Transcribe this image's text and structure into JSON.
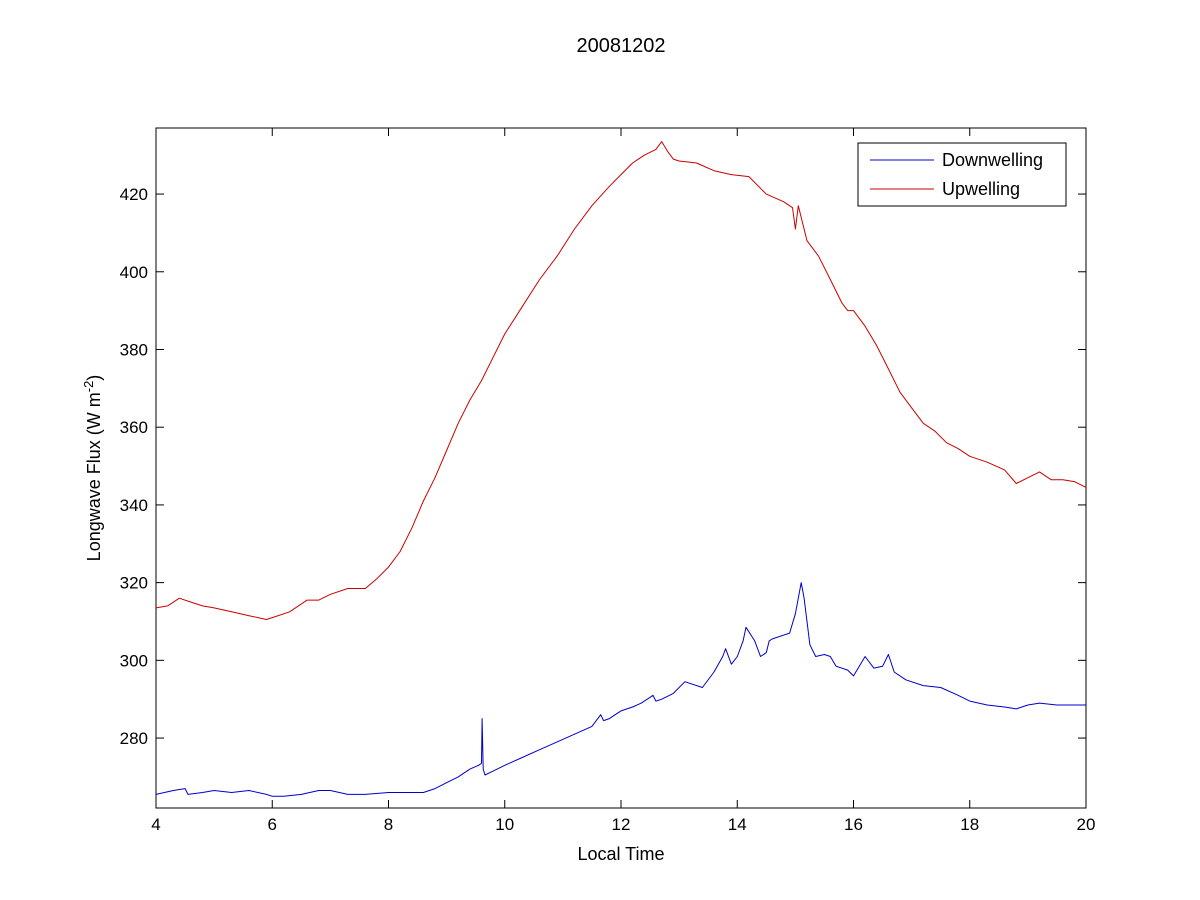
{
  "chart_data": {
    "type": "line",
    "title": "20081202",
    "xlabel": "Local Time",
    "ylabel": {
      "main": "Longwave Flux (W m",
      "superscript": "-2",
      "close": ")"
    },
    "xlim": [
      4,
      20
    ],
    "ylim": [
      262,
      437
    ],
    "xticks": [
      4,
      6,
      8,
      10,
      12,
      14,
      16,
      18,
      20
    ],
    "yticks": [
      280,
      300,
      320,
      340,
      360,
      380,
      400,
      420
    ],
    "grid": false,
    "legend_position": "top-right",
    "series": [
      {
        "name": "Downwelling",
        "color": "#0000cc",
        "x": [
          4.0,
          4.3,
          4.5,
          4.55,
          4.8,
          5.0,
          5.3,
          5.6,
          5.9,
          6.0,
          6.2,
          6.5,
          6.8,
          7.0,
          7.3,
          7.6,
          8.0,
          8.3,
          8.6,
          8.8,
          9.0,
          9.2,
          9.4,
          9.55,
          9.6,
          9.61,
          9.63,
          9.66,
          9.8,
          10.0,
          10.3,
          10.6,
          10.9,
          11.2,
          11.5,
          11.65,
          11.7,
          11.8,
          11.9,
          12.0,
          12.2,
          12.35,
          12.5,
          12.55,
          12.6,
          12.7,
          12.9,
          13.1,
          13.4,
          13.6,
          13.75,
          13.8,
          13.9,
          14.0,
          14.1,
          14.15,
          14.3,
          14.4,
          14.5,
          14.55,
          14.6,
          14.9,
          15.0,
          15.05,
          15.1,
          15.15,
          15.25,
          15.35,
          15.5,
          15.6,
          15.7,
          15.9,
          16.0,
          16.1,
          16.2,
          16.35,
          16.5,
          16.6,
          16.7,
          16.9,
          17.2,
          17.5,
          17.8,
          18.0,
          18.3,
          18.6,
          18.8,
          19.0,
          19.2,
          19.5,
          19.8,
          20.0
        ],
        "y": [
          265.5,
          266.5,
          267.0,
          265.5,
          266.0,
          266.5,
          266.0,
          266.5,
          265.5,
          265.0,
          265.0,
          265.5,
          266.5,
          266.5,
          265.5,
          265.5,
          266.0,
          266.0,
          266.0,
          267.0,
          268.5,
          270.0,
          272.0,
          273.0,
          273.5,
          285.0,
          272.0,
          270.5,
          271.5,
          273.0,
          275.0,
          277.0,
          279.0,
          281.0,
          283.0,
          286.0,
          284.5,
          285.0,
          286.0,
          287.0,
          288.0,
          289.0,
          290.5,
          291.0,
          289.5,
          290.0,
          291.5,
          294.5,
          293.0,
          297.0,
          301.0,
          303.0,
          299.0,
          301.0,
          305.0,
          308.5,
          305.0,
          301.0,
          302.0,
          305.0,
          305.5,
          307.0,
          312.0,
          316.0,
          320.0,
          316.0,
          304.0,
          301.0,
          301.5,
          301.0,
          298.5,
          297.5,
          296.0,
          298.5,
          301.0,
          298.0,
          298.5,
          301.5,
          297.0,
          295.0,
          293.5,
          293.0,
          291.0,
          289.5,
          288.5,
          288.0,
          287.5,
          288.5,
          289.0,
          288.5,
          288.5,
          288.5
        ]
      },
      {
        "name": "Upwelling",
        "color": "#cc0000",
        "x": [
          4.0,
          4.2,
          4.4,
          4.6,
          4.8,
          5.0,
          5.3,
          5.6,
          5.9,
          6.0,
          6.3,
          6.6,
          6.8,
          7.0,
          7.3,
          7.6,
          7.8,
          8.0,
          8.2,
          8.4,
          8.6,
          8.8,
          9.0,
          9.2,
          9.4,
          9.6,
          9.8,
          10.0,
          10.3,
          10.6,
          10.9,
          11.2,
          11.5,
          11.8,
          12.0,
          12.2,
          12.4,
          12.6,
          12.7,
          12.8,
          12.9,
          13.0,
          13.3,
          13.6,
          13.9,
          14.2,
          14.5,
          14.8,
          14.95,
          15.0,
          15.05,
          15.1,
          15.2,
          15.4,
          15.6,
          15.8,
          15.9,
          16.0,
          16.2,
          16.4,
          16.6,
          16.8,
          17.0,
          17.2,
          17.4,
          17.6,
          17.8,
          18.0,
          18.3,
          18.6,
          18.8,
          19.0,
          19.2,
          19.4,
          19.6,
          19.8,
          20.0
        ],
        "y": [
          313.5,
          314.0,
          316.0,
          315.0,
          314.0,
          313.5,
          312.5,
          311.5,
          310.5,
          311.0,
          312.5,
          315.5,
          315.5,
          317.0,
          318.5,
          318.5,
          321.0,
          324.0,
          328.0,
          334.0,
          341.0,
          347.0,
          354.0,
          361.0,
          367.0,
          372.0,
          378.0,
          384.0,
          391.0,
          398.0,
          404.0,
          411.0,
          417.0,
          422.0,
          425.0,
          428.0,
          430.0,
          431.5,
          433.5,
          431.0,
          429.0,
          428.5,
          428.0,
          426.0,
          425.0,
          424.5,
          420.0,
          418.0,
          416.5,
          411.0,
          417.0,
          414.0,
          408.0,
          404.0,
          398.0,
          392.0,
          390.0,
          390.0,
          386.0,
          381.0,
          375.0,
          369.0,
          365.0,
          361.0,
          359.0,
          356.0,
          354.5,
          352.5,
          351.0,
          349.0,
          345.5,
          347.0,
          348.5,
          346.5,
          346.5,
          346.0,
          344.5
        ]
      }
    ]
  }
}
